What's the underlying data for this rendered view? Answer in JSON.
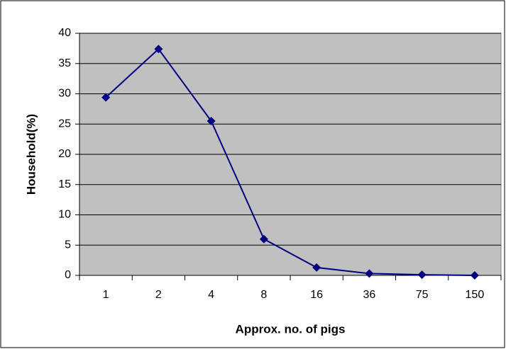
{
  "chart_data": {
    "type": "line",
    "xlabel": "Approx. no. of pigs",
    "ylabel": "Household(%)",
    "categories": [
      "1",
      "2",
      "4",
      "8",
      "16",
      "36",
      "75",
      "150"
    ],
    "series": [
      {
        "name": "Household",
        "color": "#000080",
        "values": [
          29.4,
          37.4,
          25.5,
          6.0,
          1.3,
          0.3,
          0.1,
          0
        ]
      }
    ],
    "ylim": [
      0,
      40
    ],
    "yticks": [
      0,
      5,
      10,
      15,
      20,
      25,
      30,
      35,
      40
    ],
    "grid": true
  }
}
